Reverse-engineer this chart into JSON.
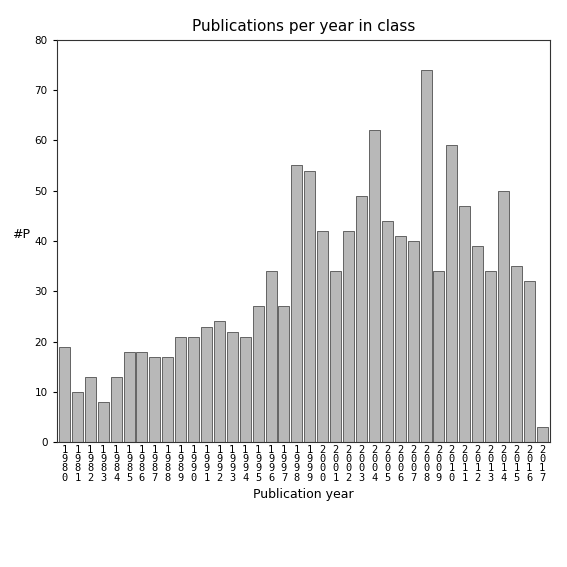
{
  "title": "Publications per year in class",
  "xlabel": "Publication year",
  "ylabel": "#P",
  "bar_color": "#b8b8b8",
  "bar_edge_color": "#333333",
  "background_color": "#ffffff",
  "ylim": [
    0,
    80
  ],
  "yticks": [
    0,
    10,
    20,
    30,
    40,
    50,
    60,
    70,
    80
  ],
  "years": [
    1980,
    1981,
    1982,
    1983,
    1984,
    1985,
    1986,
    1987,
    1988,
    1989,
    1990,
    1991,
    1992,
    1993,
    1994,
    1995,
    1996,
    1997,
    1998,
    1999,
    2000,
    2001,
    2002,
    2003,
    2004,
    2005,
    2006,
    2007,
    2008,
    2009,
    2010,
    2011,
    2012,
    2013,
    2014,
    2015,
    2016,
    2017
  ],
  "values": [
    19,
    10,
    13,
    8,
    13,
    18,
    18,
    17,
    17,
    21,
    21,
    23,
    24,
    22,
    21,
    27,
    34,
    27,
    55,
    54,
    42,
    34,
    42,
    49,
    62,
    44,
    41,
    40,
    74,
    34,
    59,
    47,
    39,
    34,
    50,
    35,
    32,
    3
  ],
  "tick_label_fontsize": 7.5,
  "title_fontsize": 11,
  "axis_label_fontsize": 9
}
